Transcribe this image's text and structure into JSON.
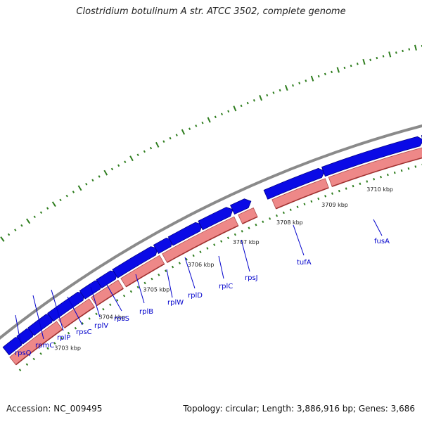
{
  "title": "Clostridium botulinum A str. ATCC 3502, complete genome",
  "accession": "Accession: NC_009495",
  "summary": "Topology: circular; Length: 3,886,916 bp; Genes: 3,686",
  "scale_labels": [
    "3703 kbp",
    "3704 kbp",
    "3705 kbp",
    "3706 kbp",
    "3707 kbp",
    "3708 kbp",
    "3709 kbp",
    "3710 kbp"
  ],
  "genes": [
    "rpsQ",
    "rpmC",
    "rplP",
    "rpsC",
    "rplV",
    "rpsS",
    "rplB",
    "rplW",
    "rplD",
    "rplC",
    "rpsJ",
    "tufA",
    "fusA"
  ],
  "colors": {
    "backbone": "#8a8a8a",
    "forward_feature": "#0a0ae6",
    "reverse_feature": "#ee8888",
    "gc_ticks": "#2e7d1e",
    "gene_label": "#0000cc"
  }
}
